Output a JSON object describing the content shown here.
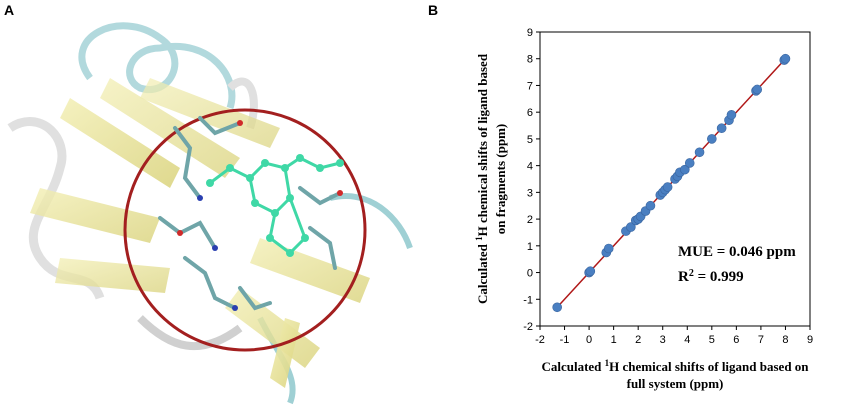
{
  "panels": {
    "a_label": "A",
    "b_label": "B"
  },
  "colors": {
    "points": "#4a7fc1",
    "fit_line": "#b01818",
    "circle": "#a31f1f",
    "ribbon": "#e6e08a",
    "ligand": "#3fd8a6"
  },
  "chart_data": {
    "type": "scatter",
    "title": "",
    "xlabel_lines": [
      "Calculated {1}H chemical shifts of ligand based on",
      "full system (ppm)"
    ],
    "ylabel_lines": [
      "Calculated {1}H chemical shifts of ligand based",
      "on fragments (ppm)"
    ],
    "xlim": [
      -2,
      9
    ],
    "ylim": [
      -2,
      9
    ],
    "xticks": [
      "-2",
      "-1",
      "0",
      "1",
      "2",
      "3",
      "4",
      "5",
      "6",
      "7",
      "8",
      "9"
    ],
    "yticks": [
      "-2",
      "-1",
      "0",
      "1",
      "2",
      "3",
      "4",
      "5",
      "6",
      "7",
      "8",
      "9"
    ],
    "annotations": [
      "MUE = 0.046 ppm",
      "R2 = 0.999"
    ],
    "fit_line": {
      "x": [
        -1.3,
        8.0
      ],
      "y": [
        -1.3,
        8.0
      ]
    },
    "x": [
      -1.3,
      0.0,
      0.05,
      0.7,
      0.8,
      1.5,
      1.7,
      1.9,
      2.0,
      2.1,
      2.3,
      2.5,
      2.9,
      3.0,
      3.1,
      3.2,
      3.5,
      3.6,
      3.7,
      3.9,
      4.1,
      4.5,
      5.0,
      5.4,
      5.7,
      5.8,
      6.8,
      6.85,
      7.95,
      8.0
    ],
    "y": [
      -1.3,
      0.0,
      0.05,
      0.75,
      0.9,
      1.55,
      1.7,
      1.95,
      2.0,
      2.1,
      2.3,
      2.5,
      2.9,
      3.0,
      3.1,
      3.2,
      3.5,
      3.6,
      3.75,
      3.85,
      4.1,
      4.5,
      5.0,
      5.4,
      5.7,
      5.9,
      6.8,
      6.85,
      7.95,
      8.0
    ]
  }
}
